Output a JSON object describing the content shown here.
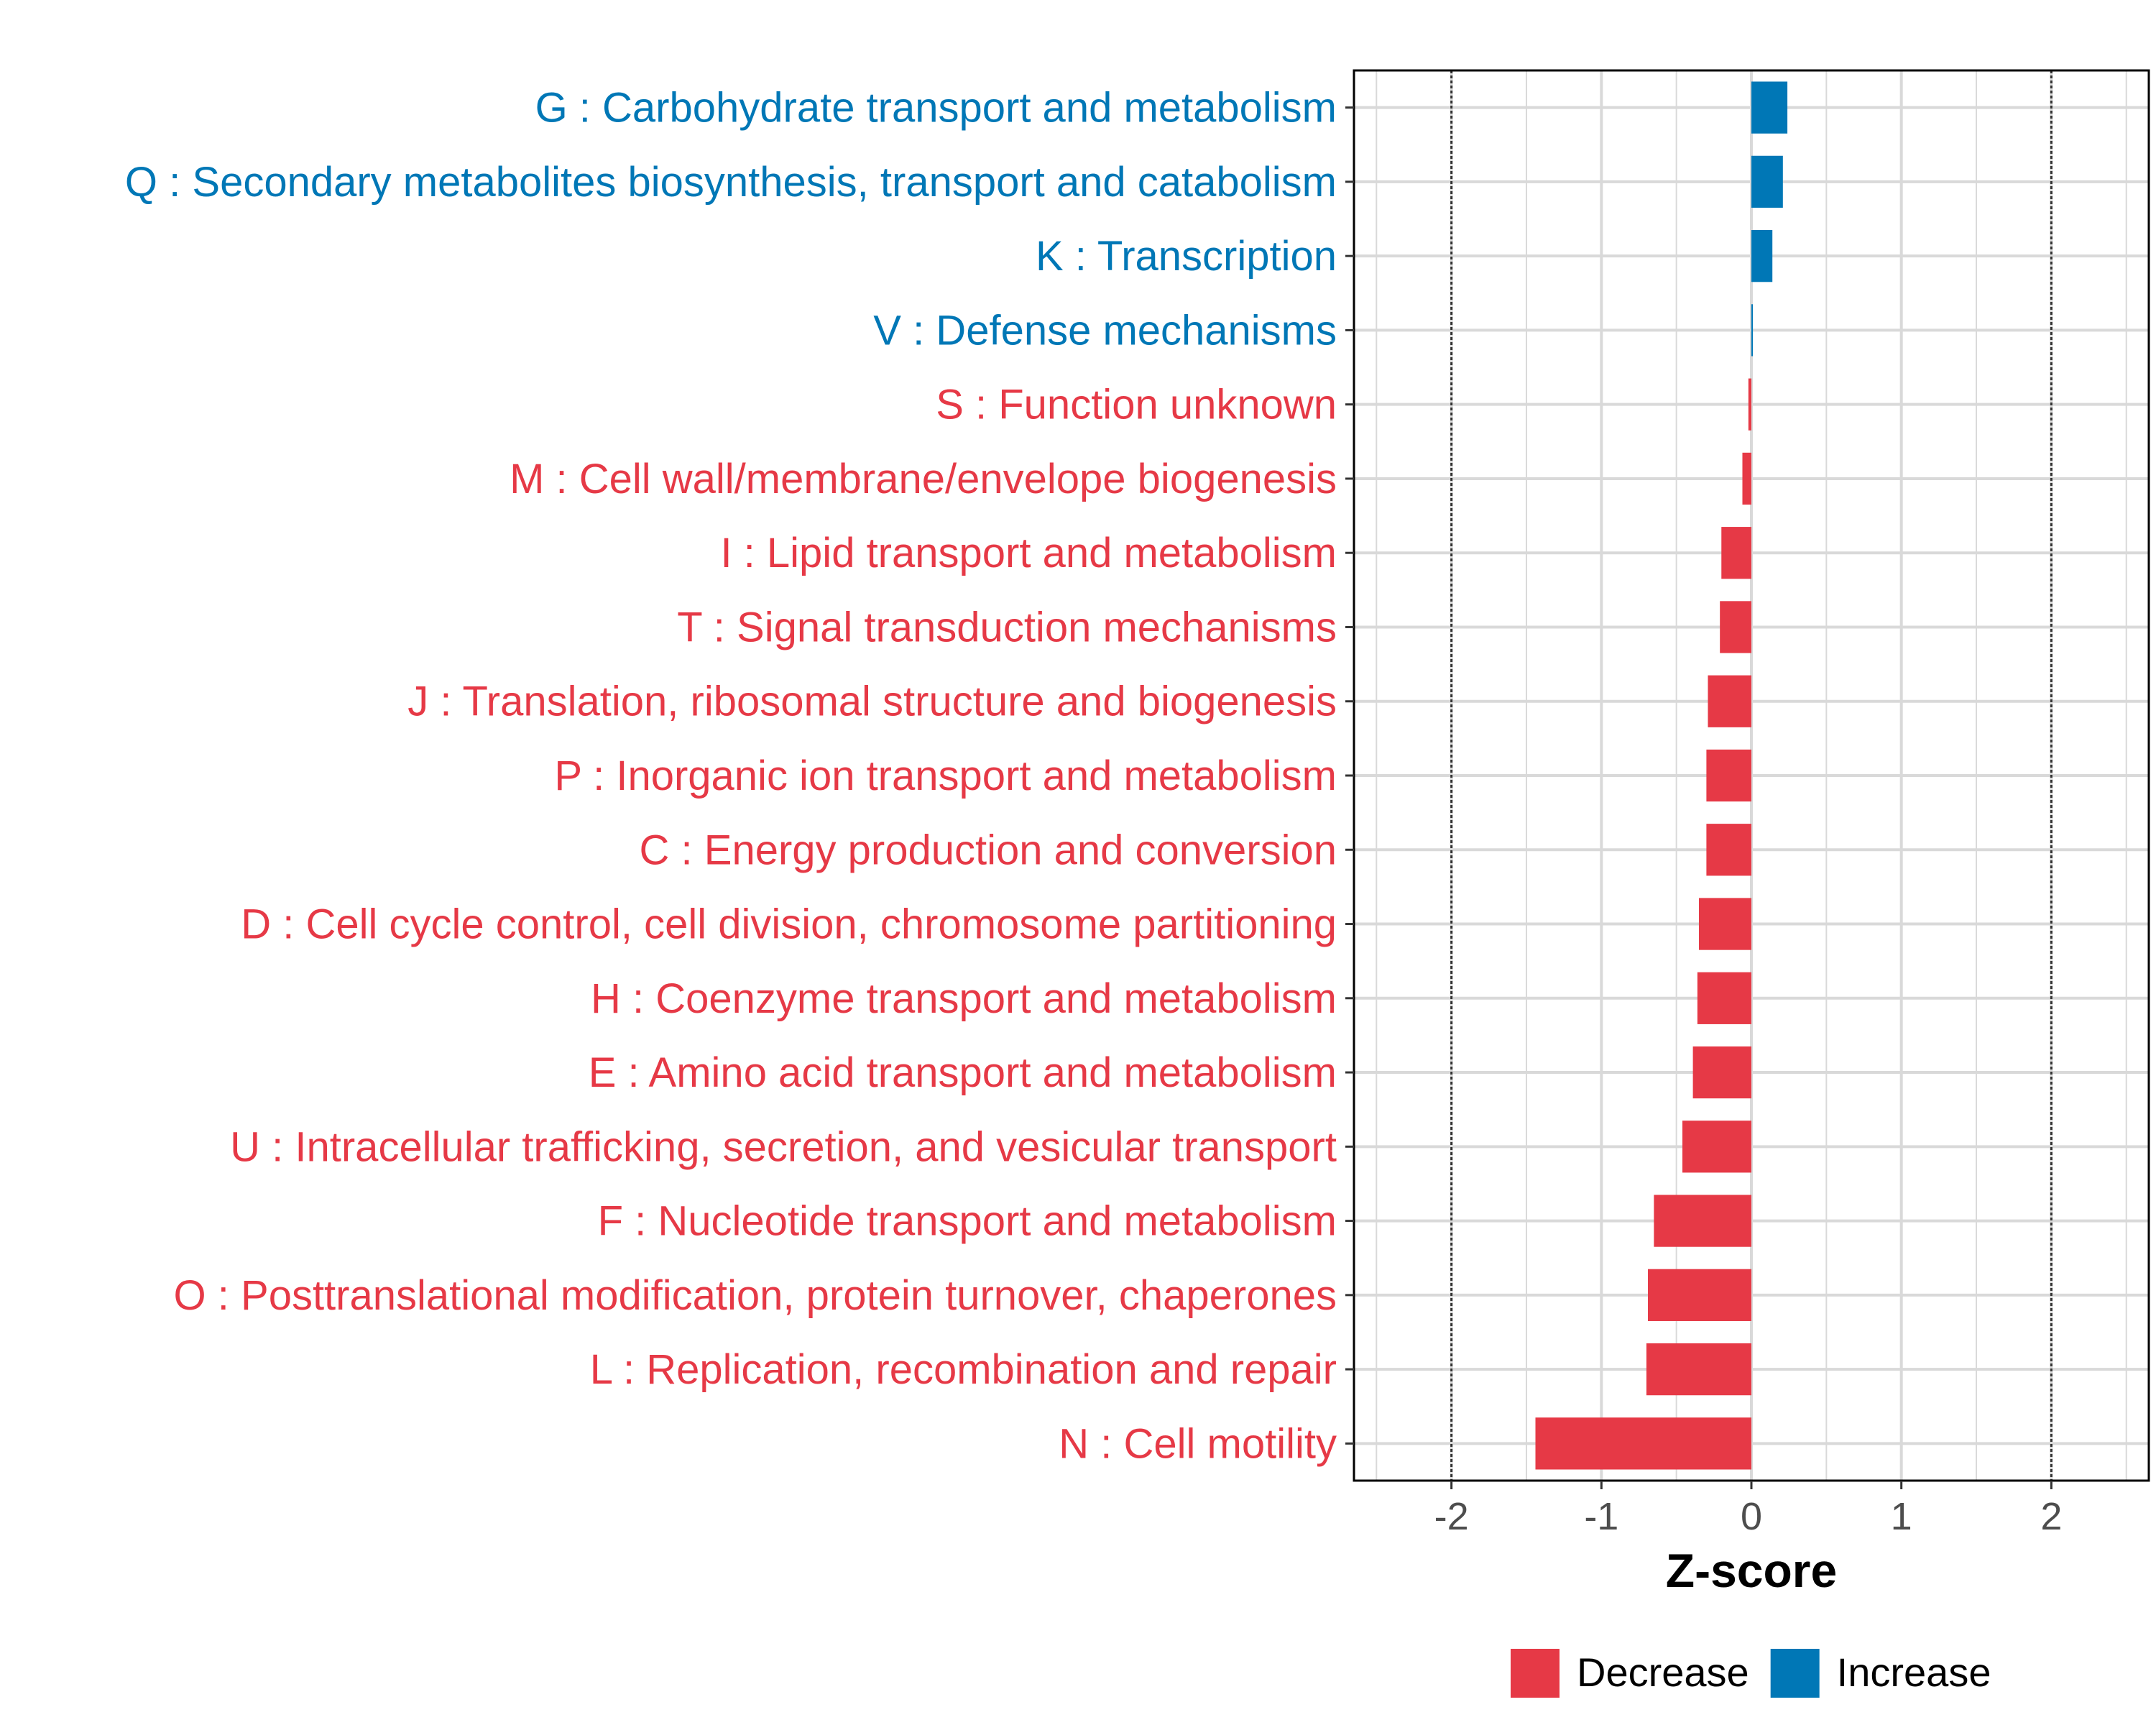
{
  "chart_data": {
    "type": "bar",
    "orientation": "horizontal",
    "title": "",
    "xlabel": "Z-score",
    "ylabel": "",
    "xlim": [
      -2.65,
      2.65
    ],
    "x_ticks": [
      -2,
      -1,
      0,
      1,
      2
    ],
    "x_tick_labels": [
      "-2",
      "-1",
      "0",
      "1",
      "2"
    ],
    "reference_lines": [
      -2,
      2
    ],
    "grid": true,
    "colors": {
      "Decrease": "#E63946",
      "Increase": "#0077B6"
    },
    "legend": {
      "position": "bottom-right",
      "entries": [
        {
          "label": "Decrease",
          "color": "#E63946"
        },
        {
          "label": "Increase",
          "color": "#0077B6"
        }
      ]
    },
    "categories": [
      {
        "label": "G : Carbohydrate transport and metabolism",
        "value": 0.24,
        "group": "Increase"
      },
      {
        "label": "Q : Secondary metabolites biosynthesis, transport and catabolism",
        "value": 0.21,
        "group": "Increase"
      },
      {
        "label": "K : Transcription",
        "value": 0.14,
        "group": "Increase"
      },
      {
        "label": "V : Defense mechanisms",
        "value": 0.01,
        "group": "Increase"
      },
      {
        "label": "S : Function unknown",
        "value": -0.02,
        "group": "Decrease"
      },
      {
        "label": "M : Cell wall/membrane/envelope biogenesis",
        "value": -0.06,
        "group": "Decrease"
      },
      {
        "label": "I : Lipid transport and metabolism",
        "value": -0.2,
        "group": "Decrease"
      },
      {
        "label": "T : Signal transduction mechanisms",
        "value": -0.21,
        "group": "Decrease"
      },
      {
        "label": "J : Translation, ribosomal structure and biogenesis",
        "value": -0.29,
        "group": "Decrease"
      },
      {
        "label": "P : Inorganic ion transport and metabolism",
        "value": -0.3,
        "group": "Decrease"
      },
      {
        "label": "C : Energy production and conversion",
        "value": -0.3,
        "group": "Decrease"
      },
      {
        "label": "D : Cell cycle control, cell division, chromosome partitioning",
        "value": -0.35,
        "group": "Decrease"
      },
      {
        "label": "H : Coenzyme transport and metabolism",
        "value": -0.36,
        "group": "Decrease"
      },
      {
        "label": "E : Amino acid transport and metabolism",
        "value": -0.39,
        "group": "Decrease"
      },
      {
        "label": "U : Intracellular trafficking, secretion, and vesicular transport",
        "value": -0.46,
        "group": "Decrease"
      },
      {
        "label": "F : Nucleotide transport and metabolism",
        "value": -0.65,
        "group": "Decrease"
      },
      {
        "label": "O : Posttranslational modification, protein turnover, chaperones",
        "value": -0.69,
        "group": "Decrease"
      },
      {
        "label": "L : Replication, recombination and repair",
        "value": -0.7,
        "group": "Decrease"
      },
      {
        "label": "N : Cell motility",
        "value": -1.44,
        "group": "Decrease"
      }
    ]
  }
}
